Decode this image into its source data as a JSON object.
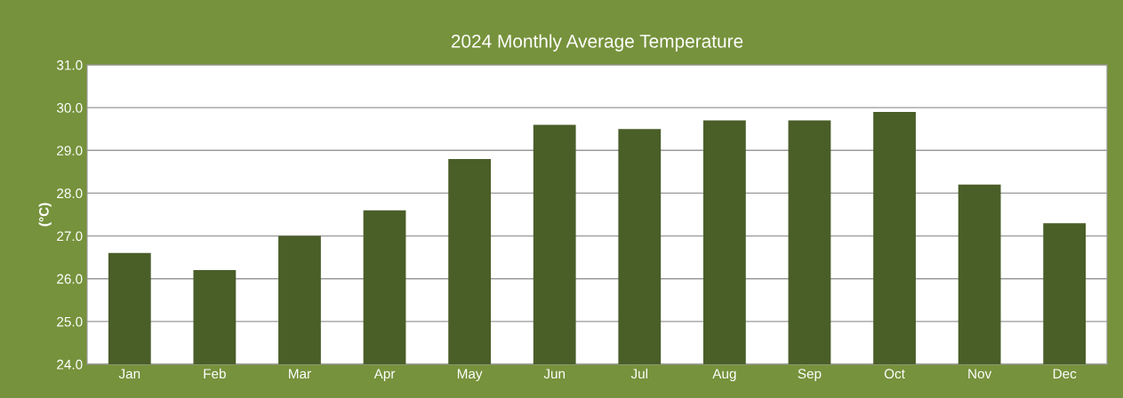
{
  "chart_data": {
    "type": "bar",
    "title": "2024 Monthly Average Temperature",
    "ylabel": "(°C)",
    "categories": [
      "Jan",
      "Feb",
      "Mar",
      "Apr",
      "May",
      "Jun",
      "Jul",
      "Aug",
      "Sep",
      "Oct",
      "Nov",
      "Dec"
    ],
    "values": [
      26.6,
      26.2,
      27.0,
      27.6,
      28.8,
      29.6,
      29.5,
      29.7,
      29.7,
      29.9,
      28.2,
      27.3
    ],
    "color": "#4a5e28",
    "ylim": [
      24.0,
      31.0
    ],
    "yticks": [
      {
        "value": 24,
        "label": "24.0"
      },
      {
        "value": 25,
        "label": "25.0"
      },
      {
        "value": 26,
        "label": "26.0"
      },
      {
        "value": 27,
        "label": "27.0"
      },
      {
        "value": 28,
        "label": "28.0"
      },
      {
        "value": 29,
        "label": "29.0"
      },
      {
        "value": 30,
        "label": "30.0"
      },
      {
        "value": 31,
        "label": "31.0"
      }
    ],
    "grid": "y",
    "legend": false
  }
}
